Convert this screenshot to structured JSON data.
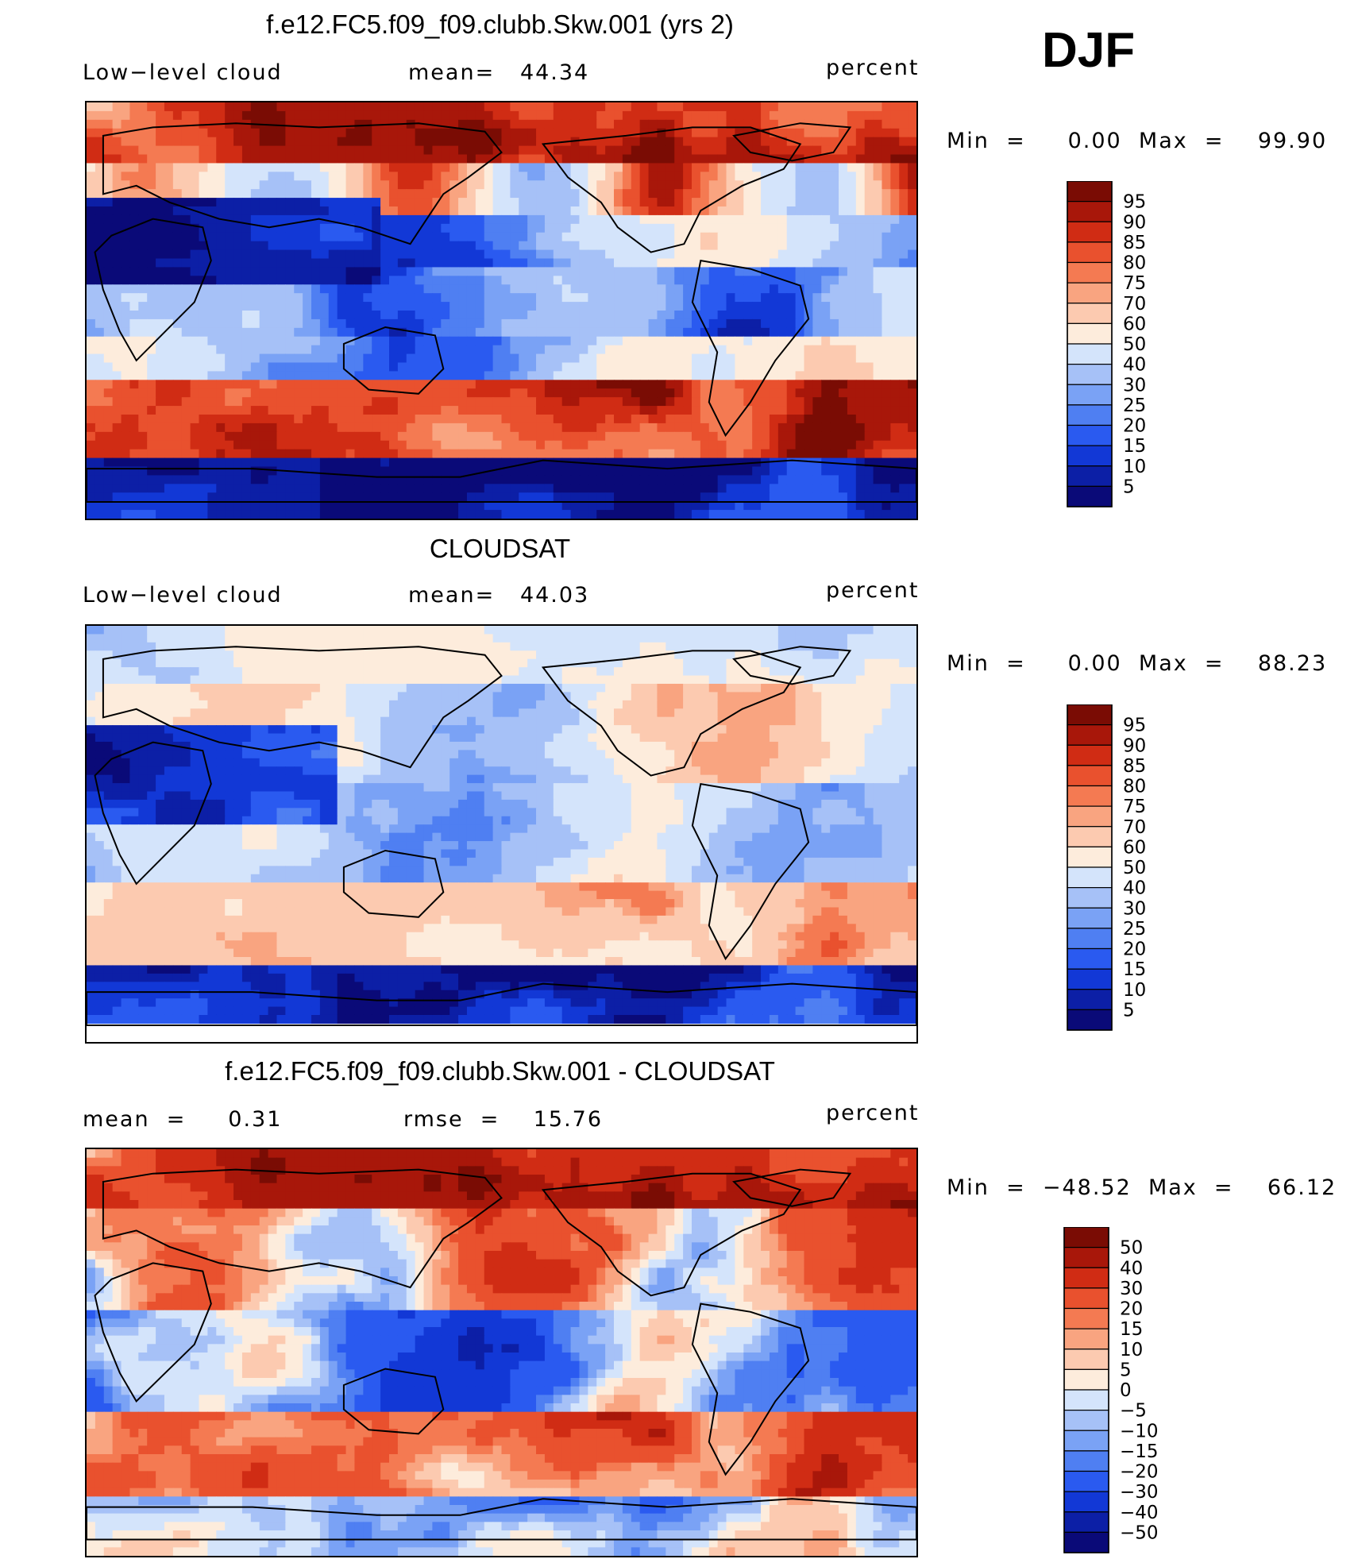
{
  "season": "DJF",
  "colors": {
    "levels_pct": [
      "#0a0a78",
      "#0c1fa6",
      "#1238d6",
      "#2a5af0",
      "#4f7ff2",
      "#7aa2f5",
      "#a6c1f7",
      "#d4e4fb",
      "#fdecdc",
      "#fccab0",
      "#f9a480",
      "#f47a52",
      "#e9512e",
      "#d02c14",
      "#a8170a",
      "#7a0c04"
    ],
    "levels_diff": [
      "#0a0a78",
      "#0c1fa6",
      "#1238d6",
      "#2a5af0",
      "#4f7ff2",
      "#7aa2f5",
      "#a6c1f7",
      "#d4e4fb",
      "#fdecdc",
      "#fccab0",
      "#f9a480",
      "#f47a52",
      "#e9512e",
      "#d02c14",
      "#a8170a",
      "#7a0c04"
    ]
  },
  "panels": [
    {
      "id": "model",
      "title": "f.e12.FC5.f09_f09.clubb.Skw.001 (yrs 2)",
      "left_label": "Low−level cloud",
      "center_label": "mean=   44.34",
      "right_label": "percent",
      "stats": "Min  =     0.00  Max  =    99.90",
      "colorbar_labels": [
        "95",
        "90",
        "85",
        "80",
        "75",
        "70",
        "60",
        "50",
        "40",
        "30",
        "25",
        "20",
        "15",
        "10",
        "5"
      ]
    },
    {
      "id": "obs",
      "title": "CLOUDSAT",
      "left_label": "Low−level cloud",
      "center_label": "mean=   44.03",
      "right_label": "percent",
      "stats": "Min  =     0.00  Max  =    88.23",
      "colorbar_labels": [
        "95",
        "90",
        "85",
        "80",
        "75",
        "70",
        "60",
        "50",
        "40",
        "30",
        "25",
        "20",
        "15",
        "10",
        "5"
      ]
    },
    {
      "id": "diff",
      "title": "f.e12.FC5.f09_f09.clubb.Skw.001 - CLOUDSAT",
      "left_label": "mean  =     0.31",
      "center_label": "rmse  =    15.76",
      "right_label": "percent",
      "stats": "Min  =  −48.52  Max  =    66.12",
      "colorbar_labels": [
        "50",
        "40",
        "30",
        "20",
        "15",
        "10",
        "5",
        "0",
        "−5",
        "−10",
        "−15",
        "−20",
        "−30",
        "−40",
        "−50"
      ]
    }
  ]
}
